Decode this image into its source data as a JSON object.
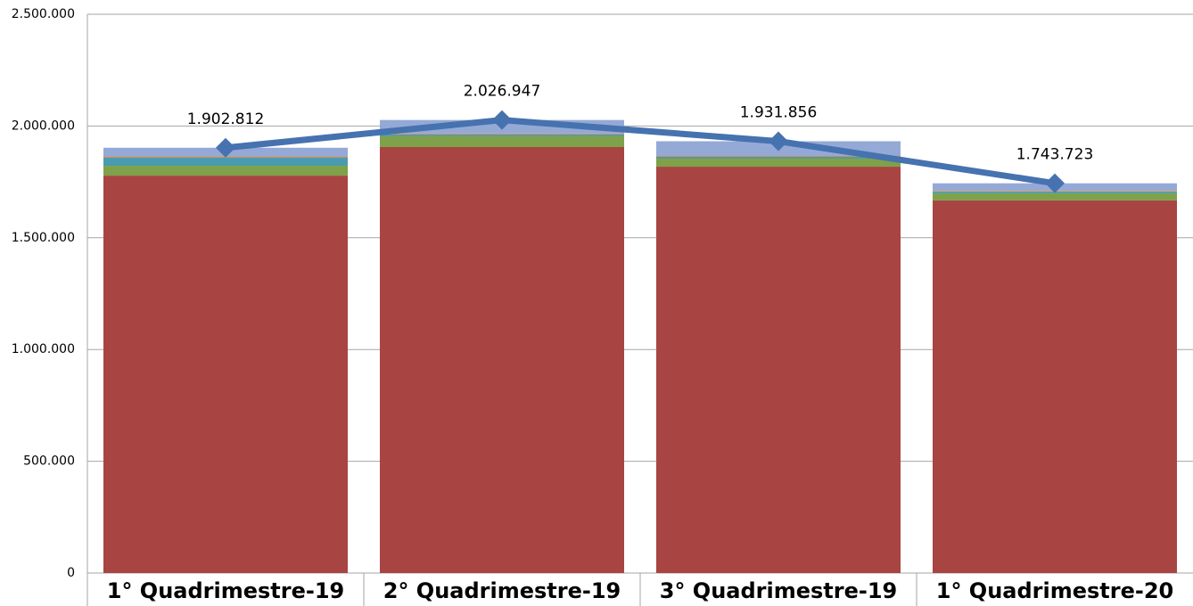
{
  "chart_data": {
    "type": "bar",
    "stacked": true,
    "grid": true,
    "categories": [
      "1° Quadrimestre-19",
      "2° Quadrimestre-19",
      "3° Quadrimestre-19",
      "1° Quadrimestre-20"
    ],
    "ylim": [
      0,
      2500000
    ],
    "yticks": [
      0,
      {
        "value": 500000,
        "label": "500.000"
      },
      {
        "value": 1000000,
        "label": "1.000.000"
      },
      {
        "value": 1500000,
        "label": "1.500.000"
      },
      {
        "value": 2000000,
        "label": "2.000.000"
      },
      {
        "value": 2500000,
        "label": "2.500.000"
      }
    ],
    "series": [
      {
        "color": "#a84543",
        "values": [
          1778000,
          1906000,
          1818000,
          1667000
        ]
      },
      {
        "color": "#7ea14a",
        "values": [
          44000,
          48000,
          36000,
          32000
        ]
      },
      {
        "color": "#4a9bb0",
        "values": [
          36000,
          8000,
          8000,
          8000
        ]
      },
      {
        "color": "#e08a3c",
        "values": [
          4000,
          4000,
          4000,
          3000
        ]
      },
      {
        "color": "#95a9d6",
        "values": [
          40812,
          60947,
          65856,
          33723
        ]
      },
      {
        "type": "line",
        "color": "#4672b0",
        "values": [
          1902812,
          2026947,
          1931856,
          1743723
        ],
        "value_labels": [
          "1.902.812",
          "2.026.947",
          "1.931.856",
          "1.743.723"
        ]
      }
    ]
  }
}
